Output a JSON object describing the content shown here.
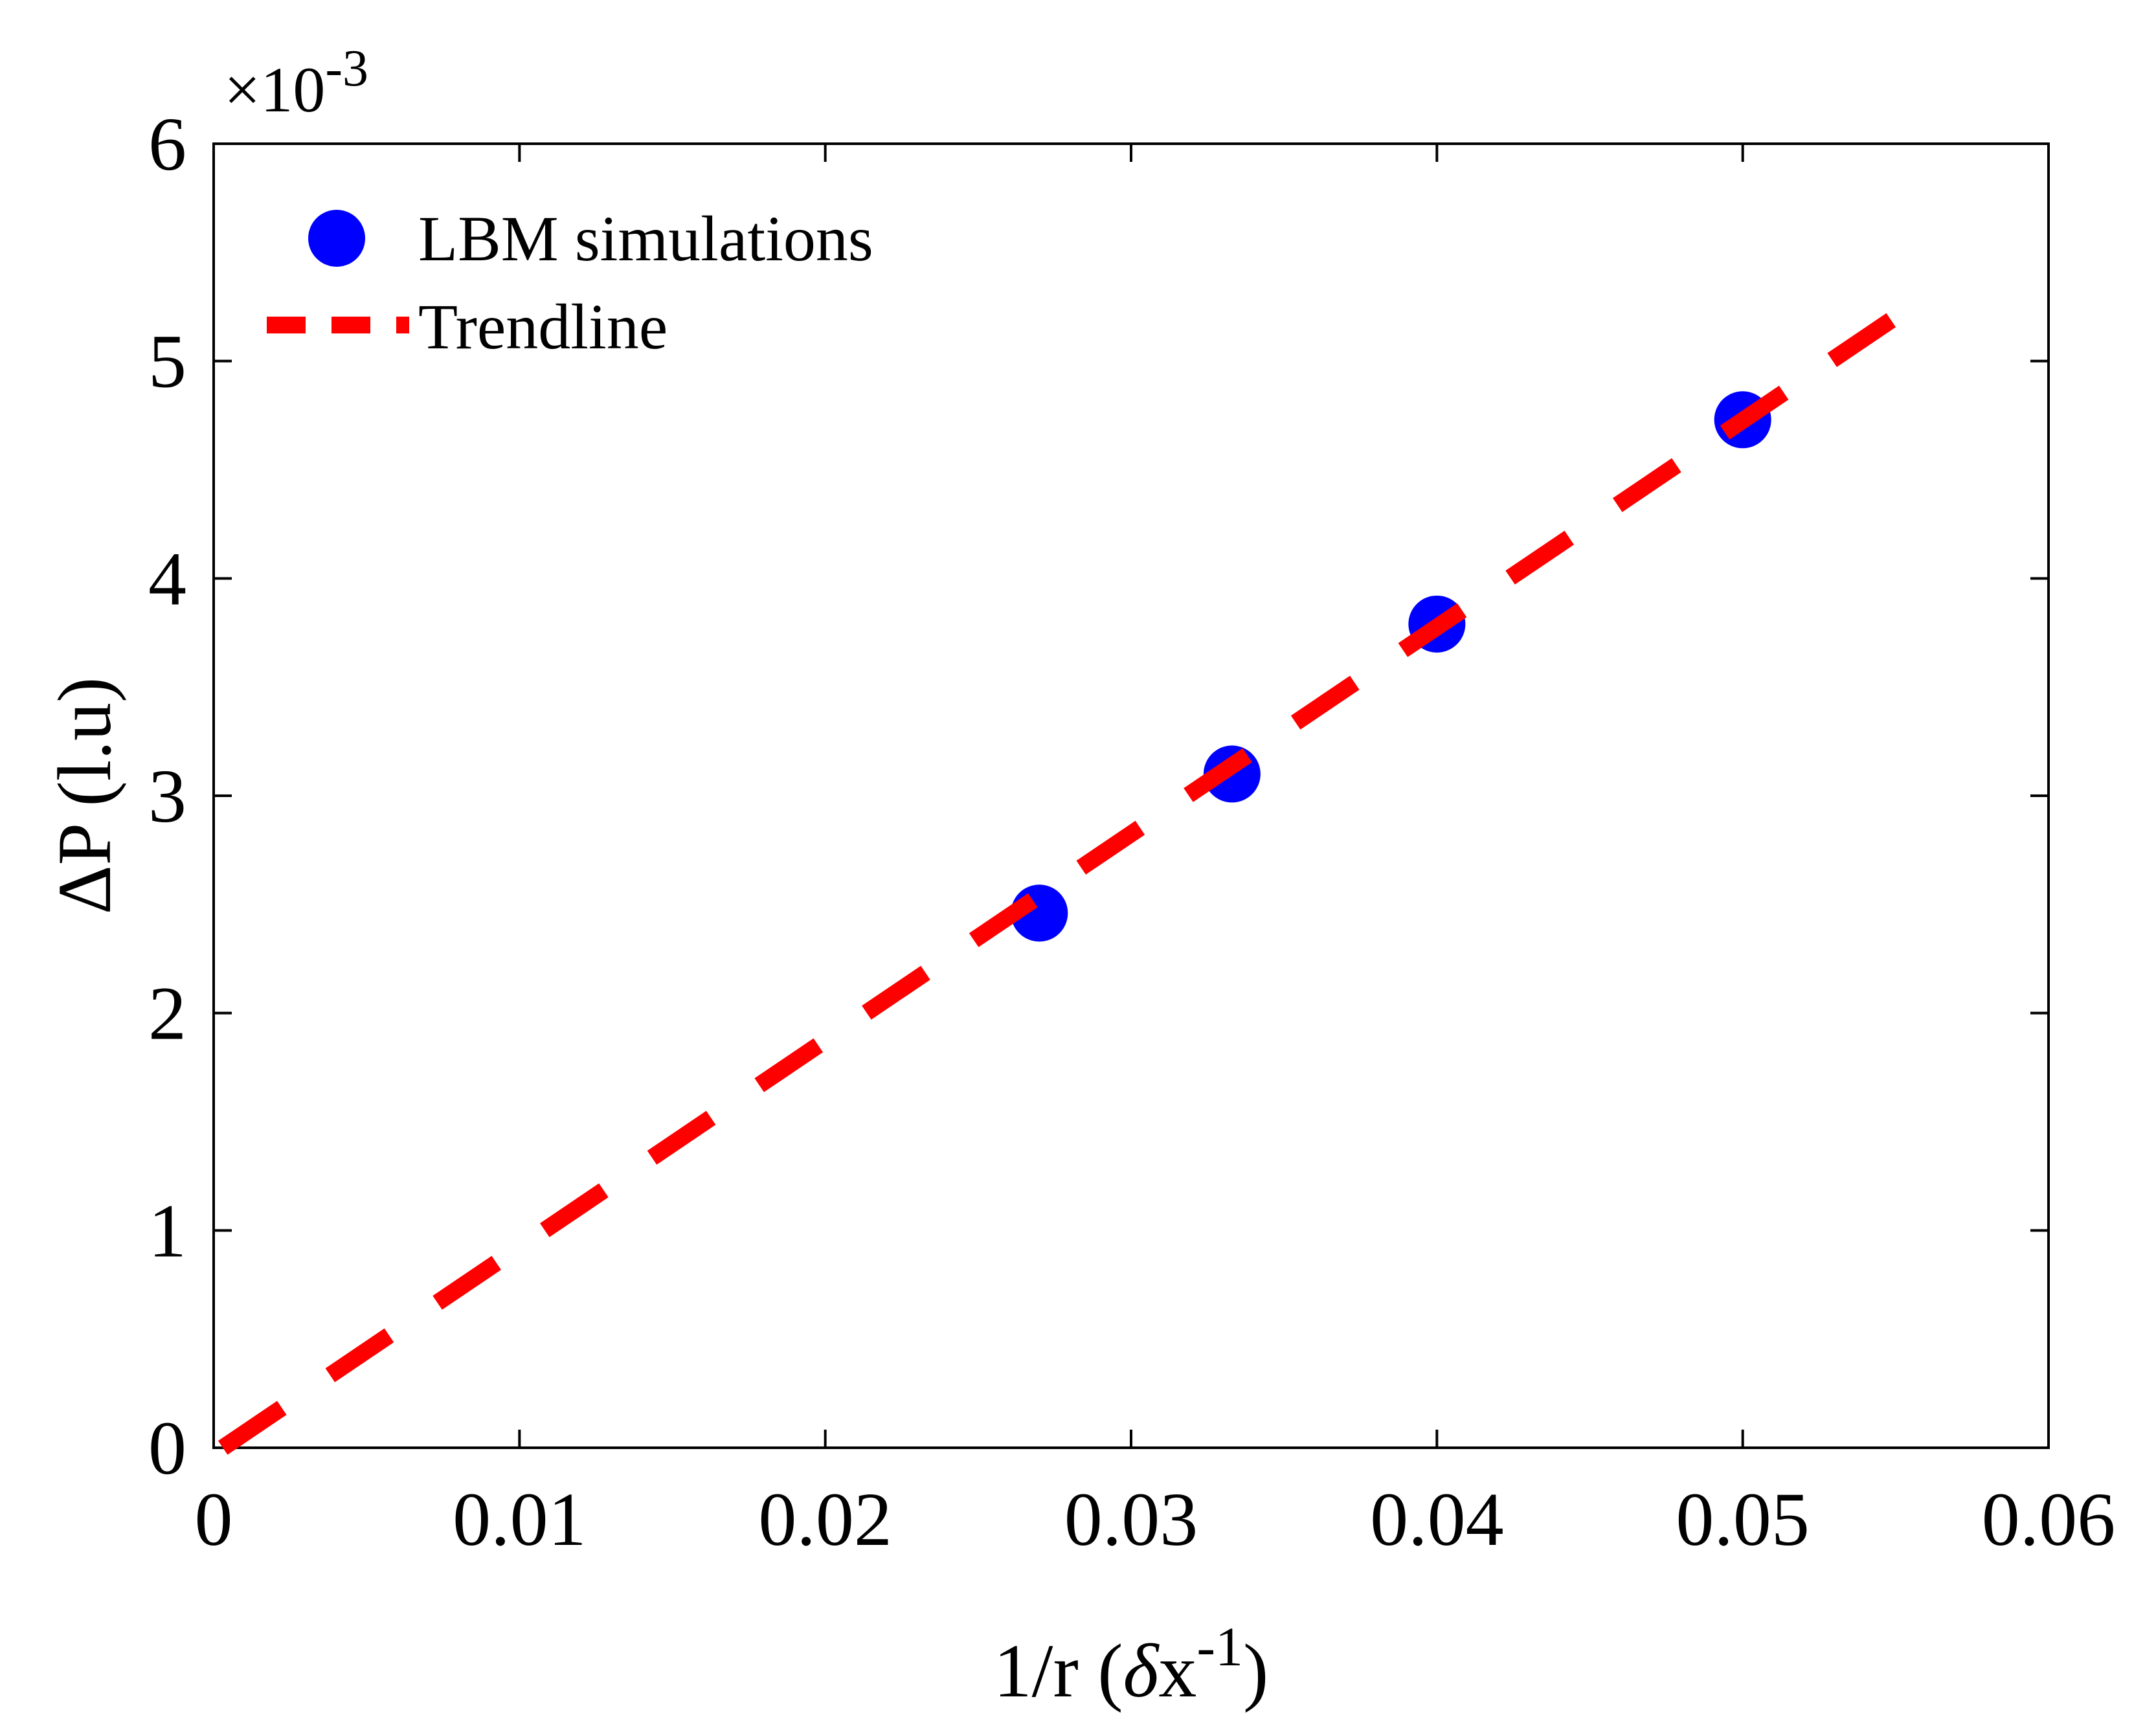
{
  "chart_data": {
    "type": "scatter",
    "title": "",
    "xlabel": "1/r",
    "xlabel_unit_prefix": "(",
    "xlabel_unit_symbol": "δ",
    "xlabel_unit_base": "x",
    "xlabel_unit_exp": "-1",
    "xlabel_unit_suffix": ")",
    "ylabel": "ΔP (l.u)",
    "xlim": [
      0,
      0.06
    ],
    "ylim": [
      0,
      6
    ],
    "xticks": [
      0,
      0.01,
      0.02,
      0.03,
      0.04,
      0.05,
      0.06
    ],
    "xtick_labels": [
      "0",
      "0.01",
      "0.02",
      "0.03",
      "0.04",
      "0.05",
      "0.06"
    ],
    "yticks": [
      0,
      1,
      2,
      3,
      4,
      5,
      6
    ],
    "ytick_labels": [
      "0",
      "1",
      "2",
      "3",
      "4",
      "5",
      "6"
    ],
    "y_multiplier_base": "×10",
    "y_multiplier_exp": "-3",
    "grid": false,
    "legend_position": "top-left",
    "series": [
      {
        "name": "LBM simulations",
        "kind": "scatter",
        "color": "#0000ff",
        "x": [
          0.027,
          0.0333,
          0.04,
          0.05
        ],
        "y": [
          2.46,
          3.1,
          3.79,
          4.73
        ]
      },
      {
        "name": "Trendline",
        "kind": "line",
        "style": "dashed",
        "color": "#ff0000",
        "x": [
          0.0003,
          0.0555
        ],
        "y": [
          0.0,
          5.25
        ]
      }
    ]
  }
}
